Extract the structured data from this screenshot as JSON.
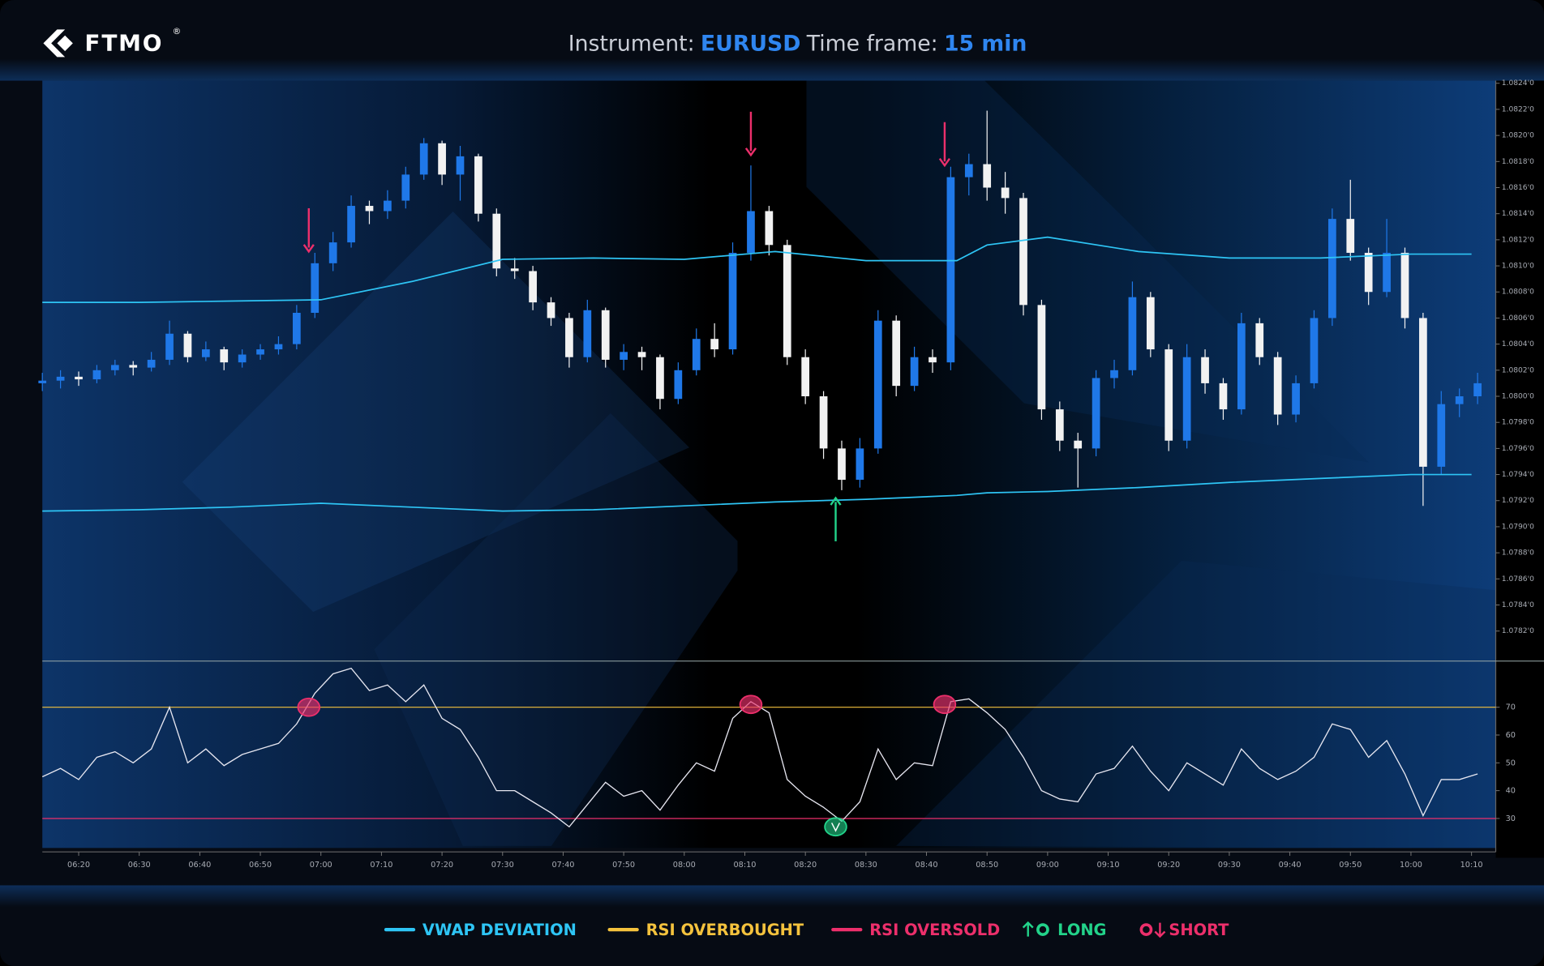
{
  "header": {
    "logo": "FTMO",
    "logo_mark": "®",
    "instrument_label": "Instrument:",
    "instrument": "EURUSD",
    "timeframe_label": "Time frame:",
    "timeframe": "15 min"
  },
  "legend": [
    {
      "name": "VWAP DEVIATION",
      "color": "#2ec5f5"
    },
    {
      "name": "RSI OVERBOUGHT",
      "color": "#f4c23d"
    },
    {
      "name": "RSI OVERSOLD",
      "color": "#ec2f6b"
    },
    {
      "name": "LONG",
      "color": "#22d38a"
    },
    {
      "name": "SHORT",
      "color": "#ec2f6b"
    }
  ],
  "chart_data": {
    "type": "candlestick",
    "x": [
      "06:14",
      "06:17",
      "06:20",
      "06:23",
      "06:26",
      "06:29",
      "06:32",
      "06:35",
      "06:38",
      "06:41",
      "06:44",
      "06:47",
      "06:50",
      "06:53",
      "06:56",
      "06:59",
      "07:02",
      "07:05",
      "07:08",
      "07:11",
      "07:14",
      "07:17",
      "07:20",
      "07:23",
      "07:26",
      "07:29",
      "07:32",
      "07:35",
      "07:38",
      "07:41",
      "07:44",
      "07:47",
      "07:50",
      "07:53",
      "07:56",
      "07:59",
      "08:02",
      "08:05",
      "08:08",
      "08:11",
      "08:14",
      "08:17",
      "08:20",
      "08:23",
      "08:26",
      "08:29",
      "08:32",
      "08:35",
      "08:38",
      "08:41",
      "08:44",
      "08:47",
      "08:50",
      "08:53",
      "08:56",
      "08:59",
      "09:02",
      "09:05",
      "09:08",
      "09:11",
      "09:14",
      "09:17",
      "09:20",
      "09:23",
      "09:26",
      "09:29",
      "09:32",
      "09:35",
      "09:38",
      "09:41",
      "09:44",
      "09:47",
      "09:50",
      "09:53",
      "09:56",
      "09:59",
      "10:02",
      "10:05",
      "10:08",
      "10:11"
    ],
    "open": [
      1.0801,
      1.08012,
      1.08015,
      1.08013,
      1.0802,
      1.08024,
      1.08022,
      1.08028,
      1.08048,
      1.0803,
      1.08036,
      1.08026,
      1.08032,
      1.08036,
      1.0804,
      1.08064,
      1.08102,
      1.08118,
      1.08146,
      1.08142,
      1.0815,
      1.0817,
      1.08194,
      1.0817,
      1.08184,
      1.0814,
      1.08098,
      1.08096,
      1.08072,
      1.0806,
      1.0803,
      1.08066,
      1.08028,
      1.08034,
      1.0803,
      1.07998,
      1.0802,
      1.08044,
      1.08036,
      1.0811,
      1.08142,
      1.08116,
      1.0803,
      1.08,
      1.0796,
      1.07936,
      1.0796,
      1.08058,
      1.08008,
      1.0803,
      1.08026,
      1.08168,
      1.08178,
      1.0816,
      1.08152,
      1.0807,
      1.0799,
      1.07966,
      1.0796,
      1.08014,
      1.0802,
      1.08076,
      1.08036,
      1.07966,
      1.0803,
      1.0801,
      1.0799,
      1.08056,
      1.0803,
      1.07986,
      1.0801,
      1.0806,
      1.08136,
      1.0811,
      1.0808,
      1.0811,
      1.0806,
      1.07946,
      1.07994,
      1.08
    ],
    "high": [
      1.08018,
      1.0802,
      1.08019,
      1.08024,
      1.08028,
      1.08027,
      1.08034,
      1.08058,
      1.0805,
      1.08042,
      1.08038,
      1.08036,
      1.0804,
      1.08046,
      1.0807,
      1.0811,
      1.08126,
      1.08154,
      1.0815,
      1.08158,
      1.08176,
      1.08198,
      1.08196,
      1.08192,
      1.08186,
      1.08144,
      1.08106,
      1.081,
      1.08076,
      1.08064,
      1.08074,
      1.08068,
      1.0804,
      1.08038,
      1.08032,
      1.08026,
      1.08052,
      1.08056,
      1.08118,
      1.08177,
      1.08146,
      1.0812,
      1.08036,
      1.08004,
      1.07966,
      1.07968,
      1.08066,
      1.08062,
      1.08038,
      1.08036,
      1.08176,
      1.08186,
      1.08219,
      1.08172,
      1.08156,
      1.08074,
      1.07996,
      1.07972,
      1.0802,
      1.08028,
      1.08088,
      1.0808,
      1.0804,
      1.0804,
      1.08036,
      1.08014,
      1.08064,
      1.0806,
      1.08034,
      1.08016,
      1.08066,
      1.08144,
      1.08166,
      1.08114,
      1.08136,
      1.08114,
      1.08064,
      1.08004,
      1.08006,
      1.08018
    ],
    "low": [
      1.08004,
      1.08006,
      1.08008,
      1.0801,
      1.08016,
      1.08016,
      1.08019,
      1.08024,
      1.08026,
      1.08027,
      1.0802,
      1.08022,
      1.08028,
      1.08032,
      1.08036,
      1.0806,
      1.08096,
      1.08114,
      1.08132,
      1.08136,
      1.08144,
      1.08166,
      1.08162,
      1.0815,
      1.08134,
      1.08092,
      1.0809,
      1.08066,
      1.08054,
      1.08022,
      1.08026,
      1.08022,
      1.0802,
      1.0802,
      1.0799,
      1.07994,
      1.08016,
      1.0803,
      1.08032,
      1.08104,
      1.08108,
      1.08024,
      1.07994,
      1.07952,
      1.07928,
      1.0793,
      1.07956,
      1.08,
      1.08004,
      1.08018,
      1.0802,
      1.08154,
      1.0815,
      1.0814,
      1.08062,
      1.07982,
      1.07958,
      1.0793,
      1.07954,
      1.08006,
      1.08016,
      1.0803,
      1.07958,
      1.0796,
      1.08002,
      1.07982,
      1.07986,
      1.08024,
      1.07978,
      1.0798,
      1.08006,
      1.08054,
      1.08104,
      1.0807,
      1.08076,
      1.08052,
      1.07916,
      1.0794,
      1.07984,
      1.07994
    ],
    "close": [
      1.08012,
      1.08015,
      1.08013,
      1.0802,
      1.08024,
      1.08022,
      1.08028,
      1.08048,
      1.0803,
      1.08036,
      1.08026,
      1.08032,
      1.08036,
      1.0804,
      1.08064,
      1.08102,
      1.08118,
      1.08146,
      1.08142,
      1.0815,
      1.0817,
      1.08194,
      1.0817,
      1.08184,
      1.0814,
      1.08098,
      1.08096,
      1.08072,
      1.0806,
      1.0803,
      1.08066,
      1.08028,
      1.08034,
      1.0803,
      1.07998,
      1.0802,
      1.08044,
      1.08036,
      1.0811,
      1.08142,
      1.08116,
      1.0803,
      1.08,
      1.0796,
      1.07936,
      1.0796,
      1.08058,
      1.08008,
      1.0803,
      1.08026,
      1.08168,
      1.08178,
      1.0816,
      1.08152,
      1.0807,
      1.0799,
      1.07966,
      1.0796,
      1.08014,
      1.0802,
      1.08076,
      1.08036,
      1.07966,
      1.0803,
      1.0801,
      1.0799,
      1.08056,
      1.0803,
      1.07986,
      1.0801,
      1.0806,
      1.08136,
      1.0811,
      1.0808,
      1.0811,
      1.0806,
      1.07946,
      1.07994,
      1.08,
      1.0801
    ],
    "up_color": "#1f78e8",
    "down_color": "#f2f2f2",
    "xlim": [
      "06:14",
      "10:14"
    ],
    "xticks": [
      "06:20",
      "06:30",
      "06:40",
      "06:50",
      "07:00",
      "07:10",
      "07:20",
      "07:30",
      "07:40",
      "07:50",
      "08:00",
      "08:10",
      "08:20",
      "08:30",
      "08:40",
      "08:50",
      "09:00",
      "09:10",
      "09:20",
      "09:30",
      "09:40",
      "09:50",
      "10:00",
      "10:10"
    ],
    "ylim": [
      1.07797,
      1.08242
    ],
    "yticks": [
      {
        "value": 1.0782,
        "label": "1.0782'0"
      },
      {
        "value": 1.0784,
        "label": "1.0784'0"
      },
      {
        "value": 1.0786,
        "label": "1.0786'0"
      },
      {
        "value": 1.0788,
        "label": "1.0788'0"
      },
      {
        "value": 1.079,
        "label": "1.0790'0"
      },
      {
        "value": 1.0792,
        "label": "1.0792'0"
      },
      {
        "value": 1.0794,
        "label": "1.0794'0"
      },
      {
        "value": 1.0796,
        "label": "1.0796'0"
      },
      {
        "value": 1.0798,
        "label": "1.0798'0"
      },
      {
        "value": 1.08,
        "label": "1.0800'0"
      },
      {
        "value": 1.0802,
        "label": "1.0802'0"
      },
      {
        "value": 1.0804,
        "label": "1.0804'0"
      },
      {
        "value": 1.0806,
        "label": "1.0806'0"
      },
      {
        "value": 1.0808,
        "label": "1.0808'0"
      },
      {
        "value": 1.081,
        "label": "1.0810'0"
      },
      {
        "value": 1.0812,
        "label": "1.0812'0"
      },
      {
        "value": 1.0814,
        "label": "1.0814'0"
      },
      {
        "value": 1.0816,
        "label": "1.0816'0"
      },
      {
        "value": 1.0818,
        "label": "1.0818'0"
      },
      {
        "value": 1.082,
        "label": "1.0820'0"
      },
      {
        "value": 1.0822,
        "label": "1.0822'0"
      },
      {
        "value": 1.0824,
        "label": "1.0824'0"
      }
    ],
    "vwap": {
      "x": [
        "06:14",
        "06:30",
        "06:45",
        "07:00",
        "07:15",
        "07:30",
        "07:45",
        "08:00",
        "08:15",
        "08:30",
        "08:45",
        "08:50",
        "09:00",
        "09:15",
        "09:30",
        "09:45",
        "10:00",
        "10:10"
      ],
      "upper": [
        1.08072,
        1.08072,
        1.08073,
        1.08074,
        1.08088,
        1.08105,
        1.08106,
        1.08105,
        1.08111,
        1.08104,
        1.08104,
        1.08116,
        1.08122,
        1.08111,
        1.08106,
        1.08106,
        1.08109,
        1.08109
      ],
      "lower": [
        1.07912,
        1.07913,
        1.07915,
        1.07918,
        1.07915,
        1.07912,
        1.07913,
        1.07916,
        1.07919,
        1.07921,
        1.07924,
        1.07926,
        1.07927,
        1.0793,
        1.07934,
        1.07937,
        1.0794,
        1.0794
      ]
    },
    "short_signals": {
      "x": [
        "06:58",
        "08:11",
        "08:43"
      ],
      "values": [
        1.08111,
        1.08185,
        1.08177
      ]
    },
    "long_signals": {
      "x": [
        "08:25"
      ],
      "values": [
        1.07922
      ]
    },
    "rsi": {
      "values": [
        45,
        48,
        44,
        52,
        54,
        50,
        55,
        70,
        50,
        55,
        49,
        53,
        55,
        57,
        64,
        75,
        82,
        84,
        76,
        78,
        72,
        78,
        66,
        62,
        52,
        40,
        40,
        36,
        32,
        27,
        35,
        43,
        38,
        40,
        33,
        42,
        50,
        47,
        66,
        72,
        68,
        44,
        38,
        34,
        29,
        36,
        55,
        44,
        50,
        49,
        72,
        73,
        68,
        62,
        52,
        40,
        37,
        36,
        46,
        48,
        56,
        47,
        40,
        50,
        46,
        42,
        55,
        48,
        44,
        47,
        52,
        64,
        62,
        52,
        58,
        46,
        31,
        44,
        44,
        46
      ],
      "color": "#e6e6f0",
      "ylim": [
        19.4,
        86.6
      ],
      "yticks": [
        30,
        40,
        50,
        60,
        70
      ],
      "overbought": 70,
      "oversold": 30,
      "short_marks": {
        "x": [
          "06:58",
          "08:11",
          "08:43"
        ],
        "values": [
          70,
          71,
          71
        ]
      },
      "long_marks": {
        "x": [
          "08:25"
        ],
        "values": [
          27
        ]
      }
    }
  }
}
